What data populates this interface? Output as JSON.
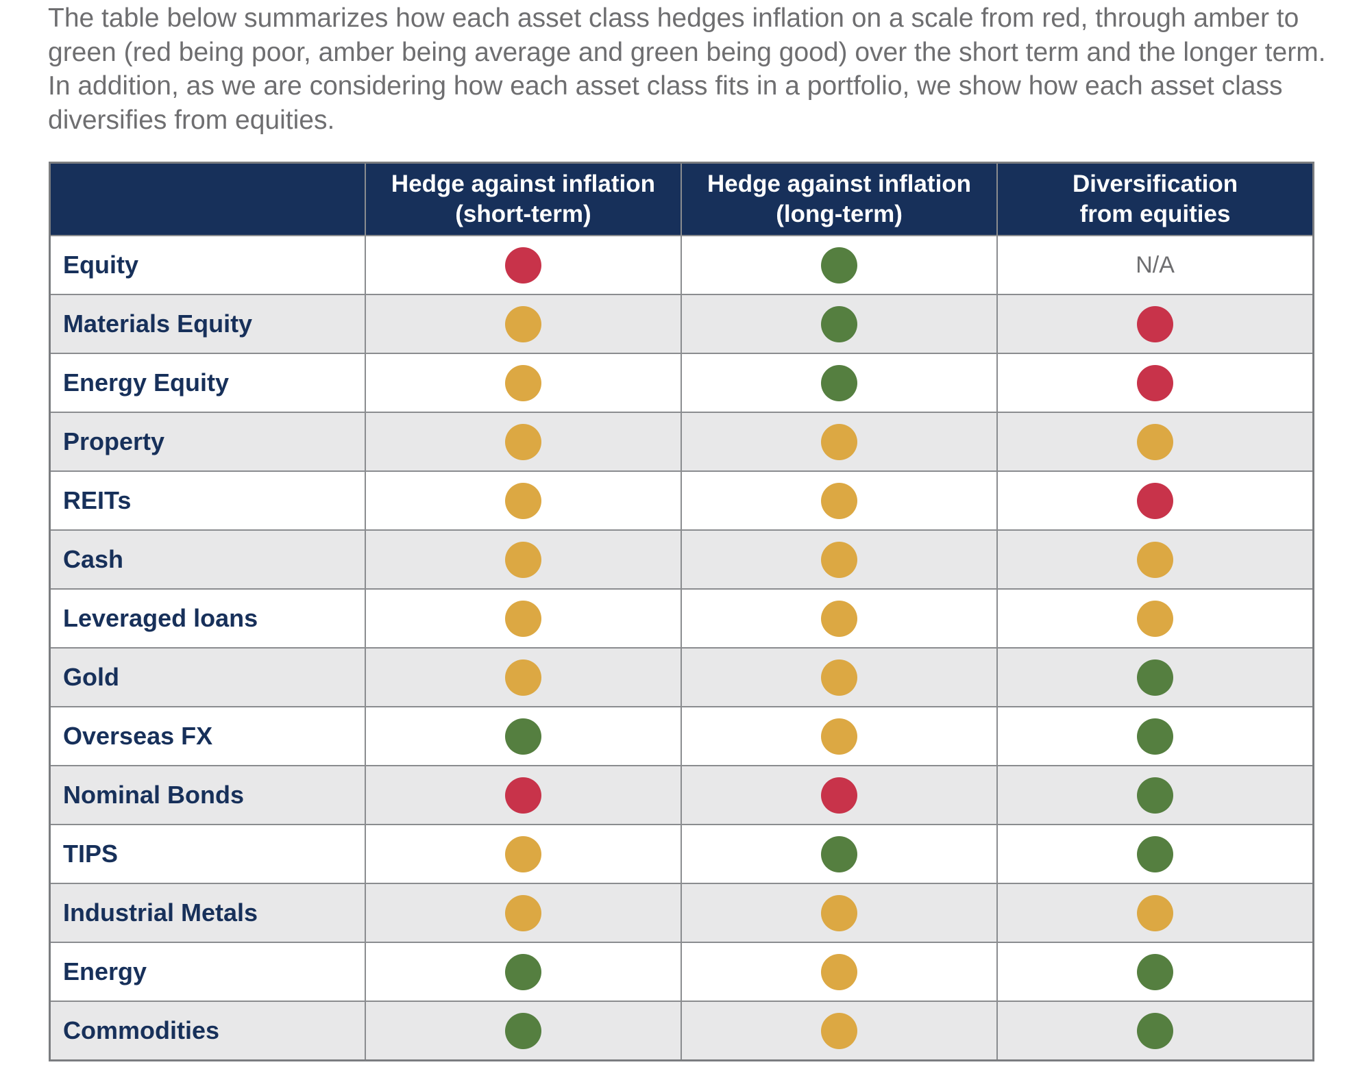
{
  "intro": "The table below summarizes how each asset class hedges inflation on a scale from red, through amber to green (red being poor, amber being average and green being good) over the short term and the longer term. In addition, as we are considering how each asset class fits in a portfolio, we show how each asset class diversifies from equities.",
  "colors": {
    "red": "#c8334a",
    "amber": "#dca843",
    "green": "#557f40",
    "header": "#17305a"
  },
  "headers": [
    "",
    "Hedge against inflation (short-term)",
    "Hedge against inflation (long-term)",
    "Diversification from equities"
  ],
  "rows": [
    {
      "label": "Equity",
      "ratings": [
        "red",
        "green",
        "N/A"
      ]
    },
    {
      "label": "Materials Equity",
      "ratings": [
        "amber",
        "green",
        "red"
      ]
    },
    {
      "label": "Energy Equity",
      "ratings": [
        "amber",
        "green",
        "red"
      ]
    },
    {
      "label": "Property",
      "ratings": [
        "amber",
        "amber",
        "amber"
      ]
    },
    {
      "label": "REITs",
      "ratings": [
        "amber",
        "amber",
        "red"
      ]
    },
    {
      "label": "Cash",
      "ratings": [
        "amber",
        "amber",
        "amber"
      ]
    },
    {
      "label": "Leveraged loans",
      "ratings": [
        "amber",
        "amber",
        "amber"
      ]
    },
    {
      "label": "Gold",
      "ratings": [
        "amber",
        "amber",
        "green"
      ]
    },
    {
      "label": "Overseas FX",
      "ratings": [
        "green",
        "amber",
        "green"
      ]
    },
    {
      "label": "Nominal Bonds",
      "ratings": [
        "red",
        "red",
        "green"
      ]
    },
    {
      "label": "TIPS",
      "ratings": [
        "amber",
        "green",
        "green"
      ]
    },
    {
      "label": "Industrial Metals",
      "ratings": [
        "amber",
        "amber",
        "amber"
      ]
    },
    {
      "label": "Energy",
      "ratings": [
        "green",
        "amber",
        "green"
      ]
    },
    {
      "label": "Commodities",
      "ratings": [
        "green",
        "amber",
        "green"
      ]
    }
  ]
}
